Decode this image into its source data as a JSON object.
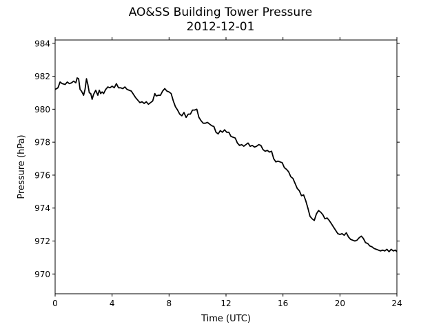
{
  "chart_data": {
    "type": "line",
    "title": "AO&SS Building Tower Pressure",
    "subtitle": "2012-12-01",
    "xlabel": "Time (UTC)",
    "ylabel": "Pressure (hPa)",
    "xlim": [
      0,
      24
    ],
    "ylim": [
      968.8,
      984.2
    ],
    "xticks": [
      0,
      4,
      8,
      12,
      16,
      20,
      24
    ],
    "yticks": [
      970,
      972,
      974,
      976,
      978,
      980,
      982,
      984
    ],
    "grid": false,
    "line_color": "#000000",
    "series": [
      {
        "x": [
          0.0,
          0.2,
          0.35,
          0.5,
          0.7,
          0.85,
          1.0,
          1.15,
          1.3,
          1.45,
          1.55,
          1.65,
          1.75,
          1.85,
          2.0,
          2.1,
          2.2,
          2.3,
          2.4,
          2.5,
          2.6,
          2.7,
          2.85,
          3.0,
          3.1,
          3.2,
          3.3,
          3.4,
          3.55,
          3.7,
          3.85,
          4.0,
          4.15,
          4.3,
          4.45,
          4.6,
          4.75,
          4.9,
          5.05,
          5.2,
          5.35,
          5.5,
          5.65,
          5.8,
          5.95,
          6.1,
          6.25,
          6.4,
          6.55,
          6.7,
          6.85,
          7.0,
          7.1,
          7.25,
          7.4,
          7.55,
          7.7,
          7.85,
          8.0,
          8.15,
          8.3,
          8.45,
          8.6,
          8.75,
          8.9,
          9.05,
          9.2,
          9.35,
          9.5,
          9.65,
          9.8,
          9.95,
          10.1,
          10.25,
          10.4,
          10.55,
          10.7,
          10.85,
          11.0,
          11.15,
          11.3,
          11.45,
          11.6,
          11.75,
          11.9,
          12.05,
          12.2,
          12.35,
          12.5,
          12.65,
          12.8,
          12.95,
          13.1,
          13.25,
          13.4,
          13.55,
          13.7,
          13.85,
          14.0,
          14.15,
          14.3,
          14.45,
          14.6,
          14.75,
          14.9,
          15.05,
          15.2,
          15.35,
          15.5,
          15.65,
          15.8,
          15.95,
          16.1,
          16.25,
          16.4,
          16.55,
          16.7,
          16.85,
          17.0,
          17.15,
          17.3,
          17.45,
          17.6,
          17.75,
          17.9,
          18.05,
          18.2,
          18.35,
          18.5,
          18.65,
          18.8,
          18.95,
          19.1,
          19.25,
          19.4,
          19.55,
          19.7,
          19.85,
          20.0,
          20.15,
          20.3,
          20.45,
          20.6,
          20.75,
          20.9,
          21.05,
          21.2,
          21.35,
          21.5,
          21.65,
          21.8,
          21.95,
          22.1,
          22.25,
          22.4,
          22.55,
          22.7,
          22.85,
          23.0,
          23.15,
          23.3,
          23.45,
          23.6,
          23.75,
          23.9,
          24.0
        ],
        "values": [
          981.2,
          981.3,
          981.65,
          981.55,
          981.5,
          981.65,
          981.55,
          981.6,
          981.7,
          981.6,
          981.9,
          981.85,
          981.2,
          981.1,
          980.85,
          981.2,
          981.85,
          981.5,
          981.0,
          980.95,
          980.6,
          980.9,
          981.15,
          980.85,
          981.15,
          980.95,
          981.05,
          980.95,
          981.2,
          981.35,
          981.3,
          981.4,
          981.3,
          981.55,
          981.3,
          981.3,
          981.25,
          981.35,
          981.2,
          981.15,
          981.1,
          980.9,
          980.7,
          980.55,
          980.4,
          980.45,
          980.35,
          980.45,
          980.3,
          980.4,
          980.5,
          980.95,
          980.8,
          980.85,
          980.85,
          981.1,
          981.25,
          981.1,
          981.05,
          980.95,
          980.5,
          980.15,
          979.95,
          979.7,
          979.6,
          979.8,
          979.5,
          979.7,
          979.7,
          979.95,
          979.95,
          980.0,
          979.5,
          979.3,
          979.15,
          979.15,
          979.2,
          979.1,
          979.0,
          978.95,
          978.6,
          978.5,
          978.7,
          978.6,
          978.75,
          978.6,
          978.6,
          978.35,
          978.3,
          978.25,
          977.95,
          977.8,
          977.85,
          977.75,
          977.85,
          977.95,
          977.75,
          977.8,
          977.7,
          977.75,
          977.85,
          977.8,
          977.55,
          977.45,
          977.5,
          977.4,
          977.45,
          977.0,
          976.8,
          976.85,
          976.8,
          976.75,
          976.45,
          976.35,
          976.2,
          975.9,
          975.8,
          975.5,
          975.2,
          975.05,
          974.75,
          974.8,
          974.45,
          974.0,
          973.5,
          973.35,
          973.25,
          973.65,
          973.85,
          973.75,
          973.6,
          973.35,
          973.4,
          973.25,
          973.05,
          972.85,
          972.65,
          972.45,
          972.4,
          972.45,
          972.35,
          972.5,
          972.25,
          972.1,
          972.05,
          972.0,
          972.05,
          972.2,
          972.3,
          972.15,
          971.9,
          971.85,
          971.7,
          971.65,
          971.55,
          971.5,
          971.45,
          971.4,
          971.45,
          971.4,
          971.5,
          971.35,
          971.5,
          971.4,
          971.45,
          971.35
        ]
      }
    ]
  }
}
